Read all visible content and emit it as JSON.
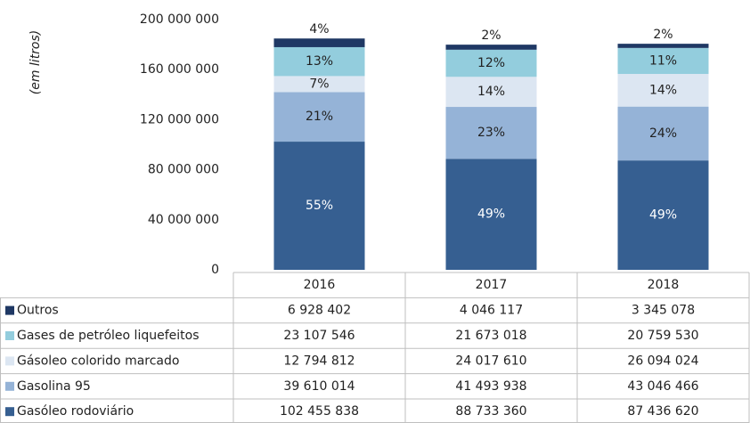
{
  "chart_data": {
    "type": "stacked-bar-table",
    "y_label": "(em litros)",
    "categories": [
      "2016",
      "2017",
      "2018"
    ],
    "ylim": [
      0,
      200000000
    ],
    "yticks": [
      0,
      {
        "value": 40000000,
        "label": "40 000 000"
      },
      {
        "value": 80000000,
        "label": "80 000 000"
      },
      {
        "value": 120000000,
        "label": "120 000 000"
      },
      {
        "value": 160000000,
        "label": "160 000 000"
      },
      {
        "value": 200000000,
        "label": "200 000 000"
      }
    ],
    "series": [
      {
        "name": "Gasóleo rodoviário",
        "color": "#365f91",
        "values": [
          102455838,
          88733360,
          87436620
        ],
        "value_labels": [
          "102 455 838",
          "88 733 360",
          "87 436 620"
        ],
        "share_labels": [
          "55%",
          "49%",
          "49%"
        ]
      },
      {
        "name": "Gasolina 95",
        "color": "#95b3d7",
        "values": [
          39610014,
          41493938,
          43046466
        ],
        "value_labels": [
          "39 610 014",
          "41 493 938",
          "43 046 466"
        ],
        "share_labels": [
          "21%",
          "23%",
          "24%"
        ]
      },
      {
        "name": "Gásoleo colorido marcado",
        "color": "#dce6f2",
        "values": [
          12794812,
          24017610,
          26094024
        ],
        "value_labels": [
          "12 794 812",
          "24 017 610",
          "26 094 024"
        ],
        "share_labels": [
          "7%",
          "14%",
          "14%"
        ]
      },
      {
        "name": "Gases de petróleo liquefeitos",
        "color": "#93cddd",
        "values": [
          23107546,
          21673018,
          20759530
        ],
        "value_labels": [
          "23 107 546",
          "21 673 018",
          "20 759 530"
        ],
        "share_labels": [
          "13%",
          "12%",
          "11%"
        ]
      },
      {
        "name": "Outros",
        "color": "#1f3864",
        "values": [
          6928402,
          4046117,
          3345078
        ],
        "value_labels": [
          "6 928 402",
          "4 046 117",
          "3 345 078"
        ],
        "share_labels": [
          "4%",
          "2%",
          "2%"
        ]
      }
    ]
  }
}
